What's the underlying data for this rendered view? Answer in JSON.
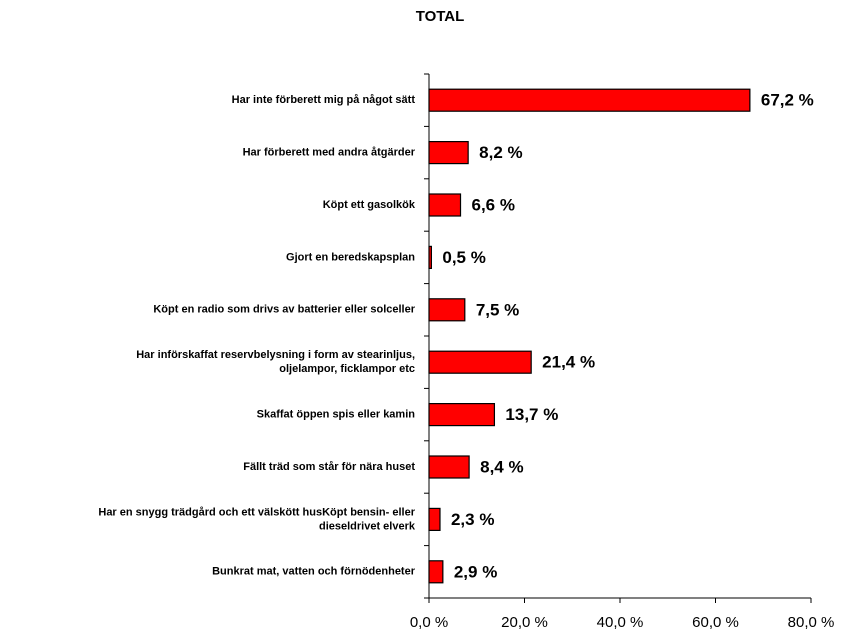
{
  "chart_data": {
    "type": "bar",
    "orientation": "horizontal",
    "title": "TOTAL",
    "categories": [
      "Har inte förberett mig på något sätt",
      "Har förberett med andra åtgärder",
      "Köpt ett gasolkök",
      "Gjort en beredskapsplan",
      "Köpt en radio som drivs av batterier eller solceller",
      "Har införskaffat reservbelysning i form av stearinljus,\noljelampor, ficklampor etc",
      "Skaffat öppen spis eller kamin",
      "Fällt träd som står för nära huset",
      "Har en snygg trädgård och ett välskött husKöpt bensin- eller\ndieseldrivet elverk",
      "Bunkrat mat, vatten och förnödenheter"
    ],
    "values": [
      67.2,
      8.2,
      6.6,
      0.5,
      7.5,
      21.4,
      13.7,
      8.4,
      2.3,
      2.9
    ],
    "value_labels": [
      "67,2 %",
      "8,2 %",
      "6,6 %",
      "0,5 %",
      "7,5 %",
      "21,4 %",
      "13,7 %",
      "8,4 %",
      "2,3 %",
      "2,9 %"
    ],
    "color": "#ff0000",
    "xlim": [
      0,
      80
    ],
    "xticks": [
      {
        "value": 0,
        "label": "0,0 %"
      },
      {
        "value": 20,
        "label": "20,0 %"
      },
      {
        "value": 40,
        "label": "40,0 %"
      },
      {
        "value": 60,
        "label": "60,0 %"
      },
      {
        "value": 80,
        "label": "80,0 %"
      }
    ],
    "grid": false
  }
}
